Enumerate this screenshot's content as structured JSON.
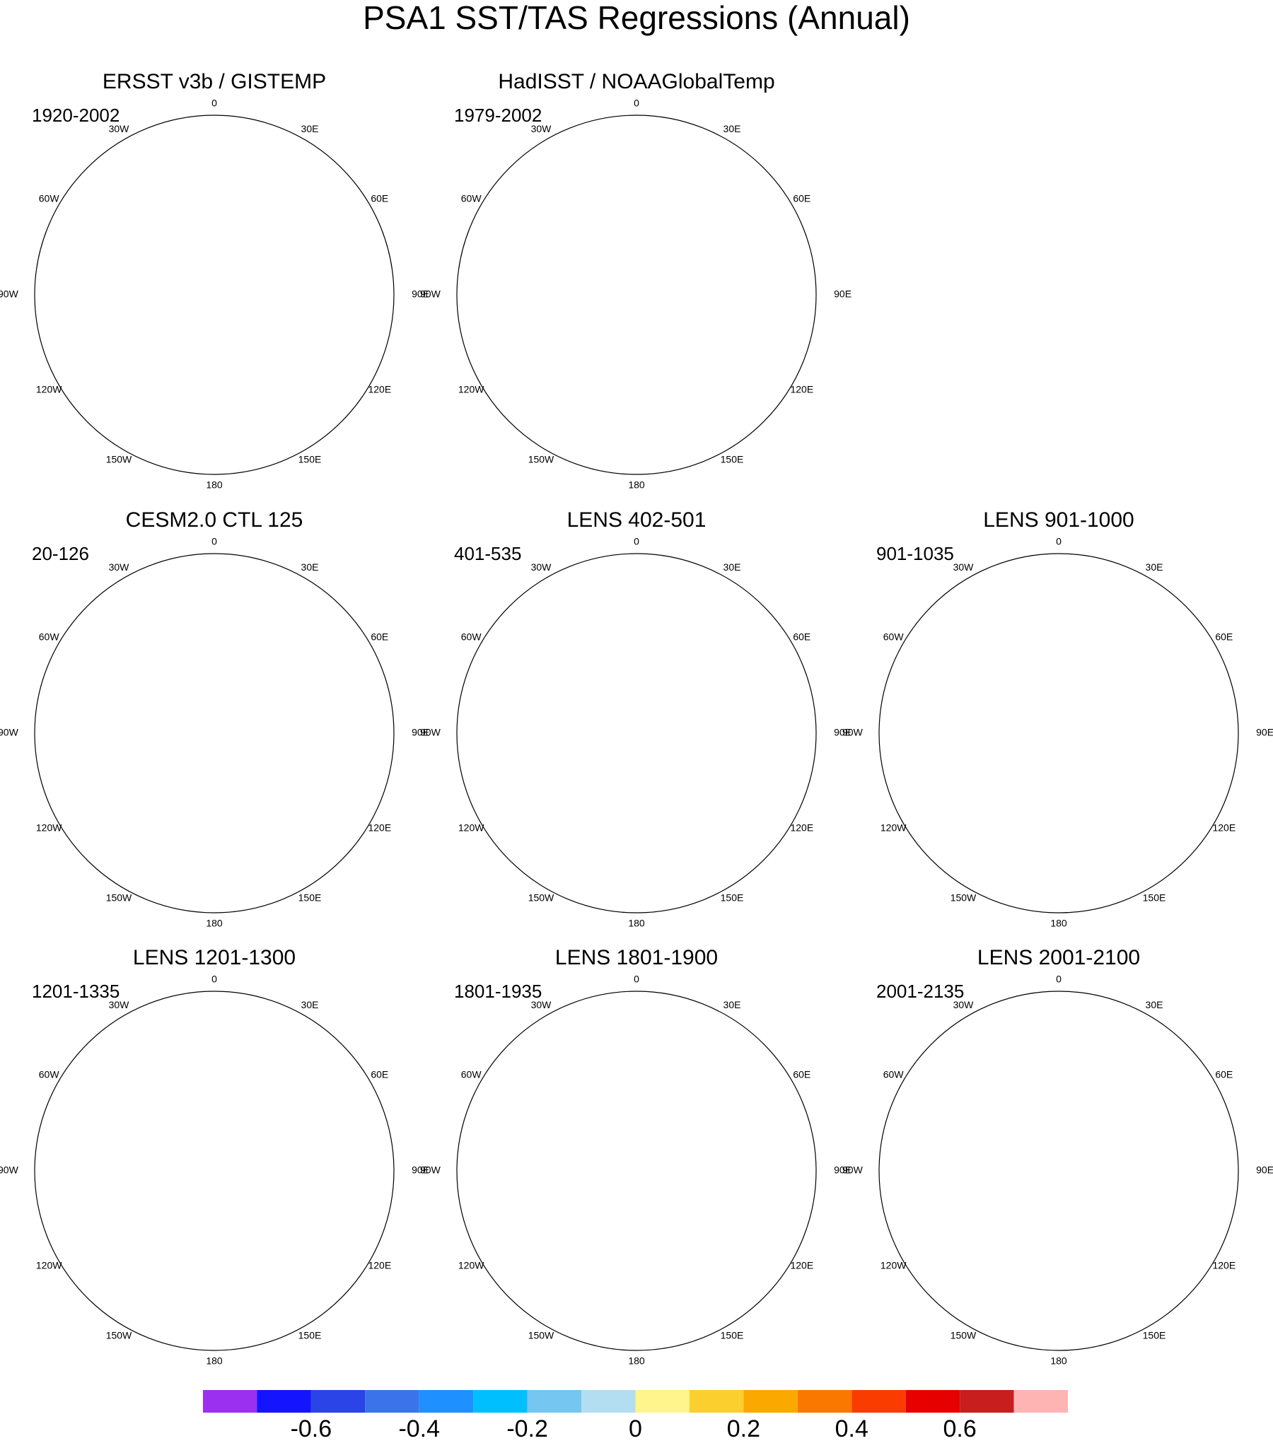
{
  "title": "PSA1 SST/TAS Regressions (Annual)",
  "panels": [
    {
      "title": "ERSST v3b / GISTEMP",
      "period": "1920-2002"
    },
    {
      "title": "HadISST / NOAAGlobalTemp",
      "period": "1979-2002"
    },
    {
      "title": "CESM2.0 CTL 125",
      "period": "20-126"
    },
    {
      "title": "LENS 402-501",
      "period": "401-535"
    },
    {
      "title": "LENS 901-1000",
      "period": "901-1035"
    },
    {
      "title": "LENS 1201-1300",
      "period": "1201-1335"
    },
    {
      "title": "LENS 1801-1900",
      "period": "1801-1935"
    },
    {
      "title": "LENS 2001-2100",
      "period": "2001-2135"
    }
  ],
  "longitude_labels": [
    "0",
    "30E",
    "60E",
    "90E",
    "120E",
    "150E",
    "180",
    "150W",
    "120W",
    "90W",
    "60W",
    "30W"
  ],
  "colorbar": {
    "colors": [
      "#9b30f0",
      "#1414ff",
      "#2a44e8",
      "#3b74ea",
      "#1e90ff",
      "#00bfff",
      "#75c6f0",
      "#b3def2",
      "#fff58c",
      "#fbd02e",
      "#fba800",
      "#fb7800",
      "#fb3c00",
      "#e60000",
      "#c81e1e",
      "#ffb4b4"
    ],
    "range": [
      -0.8,
      0.8
    ],
    "ticks": [
      -0.6,
      -0.4,
      -0.2,
      0,
      0.2,
      0.4,
      0.6
    ]
  }
}
